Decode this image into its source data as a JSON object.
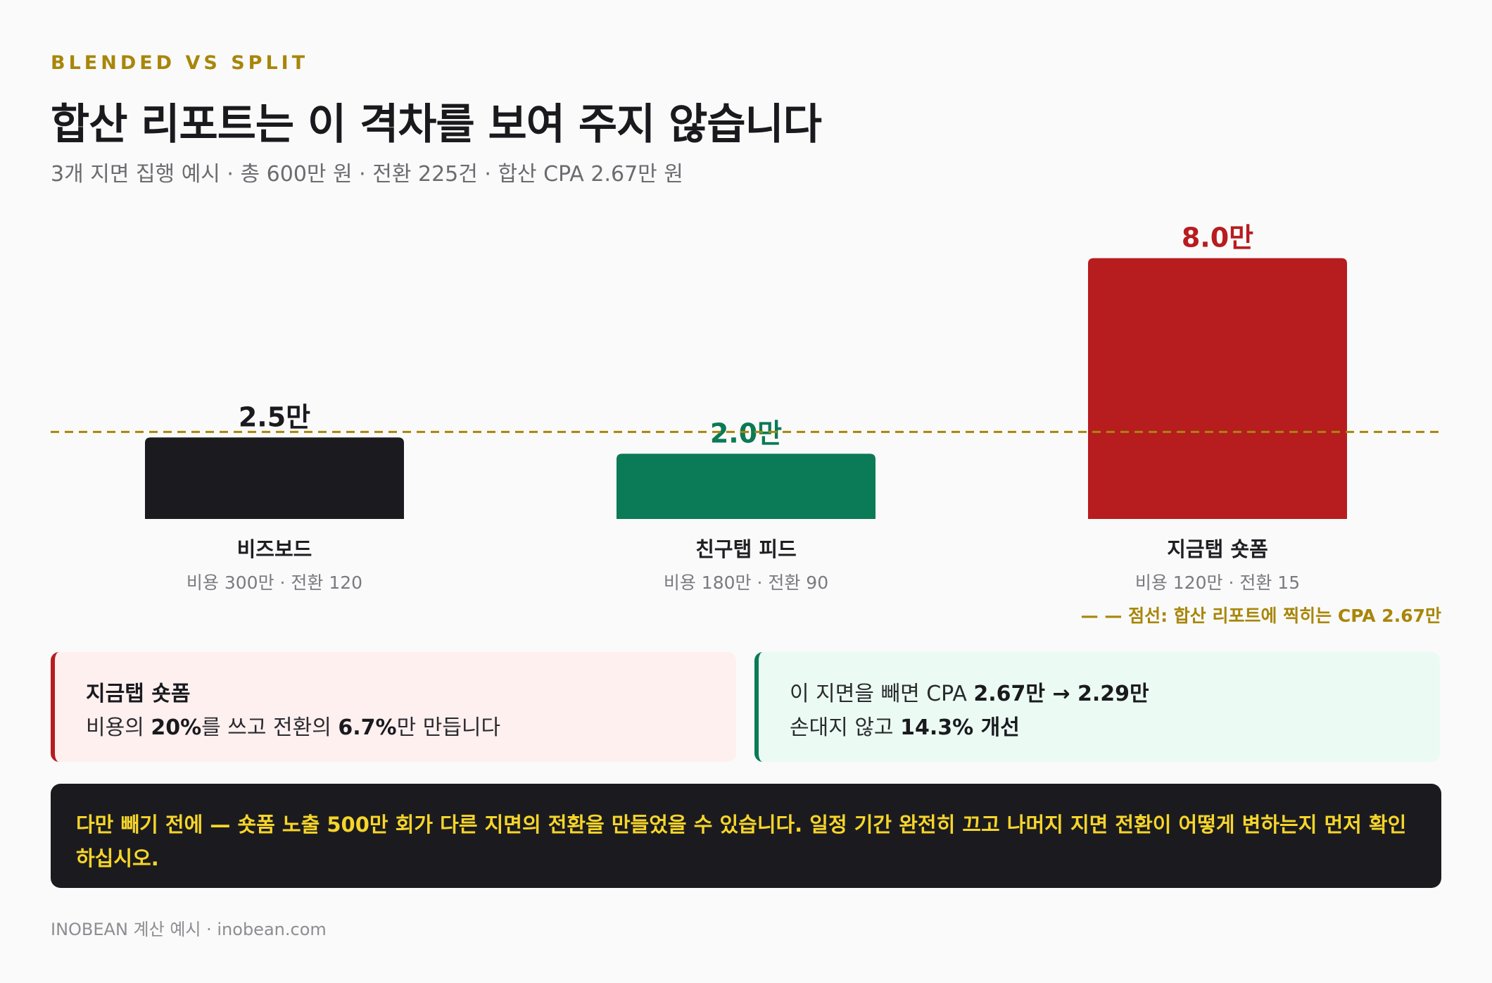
{
  "eyebrow": "BLENDED VS SPLIT",
  "title": "합산 리포트는 이 격차를 보여 주지 않습니다",
  "subtitle": "3개 지면 집행 예시 ·  총 600만 원 ·  전환 225건 ·  합산 CPA 2.67만 원",
  "colors": {
    "accent": "#a8860a",
    "bizboard": "#1b1b1f",
    "friends_feed": "#0b7a56",
    "shopping": "#b71c1f",
    "warning_text": "#f7d52a"
  },
  "chart_data": {
    "type": "bar",
    "categories": [
      "비즈보드",
      "친구탭 피드",
      "지금탭 숏폼"
    ],
    "values": [
      2.5,
      2.0,
      8.0
    ],
    "value_labels": [
      "2.5만",
      "2.0만",
      "8.0만"
    ],
    "sublabels": [
      "비용 300만 ·  전환 120",
      "비용 180만 ·  전환 90",
      "비용 120만 ·  전환 15"
    ],
    "colors": [
      "#1b1b1f",
      "#0b7a56",
      "#b71c1f"
    ],
    "label_colors": [
      "#1b1b1f",
      "#0b7a56",
      "#b71c1f"
    ],
    "reference_line": {
      "value": 2.67,
      "style": "dashed",
      "color": "#a8860a",
      "legend": "— — 점선: 합산 리포트에 찍히는 CPA 2.67만"
    },
    "ylim": [
      0,
      8.0
    ],
    "grid": false,
    "title": "",
    "xlabel": "",
    "ylabel": ""
  },
  "callouts": {
    "left": {
      "heading": "지금탭 숏폼",
      "line2_pre": "비용의 ",
      "line2_b1": "20%",
      "line2_mid": "를 쓰고 전환의 ",
      "line2_b2": "6.7%",
      "line2_post": "만 만듭니다"
    },
    "right": {
      "line1_pre": "이 지면을 빼면 CPA ",
      "line1_b": "2.67만 → 2.29만",
      "line2_pre": "손대지 않고 ",
      "line2_b": "14.3% 개선"
    }
  },
  "warning": "다만 빼기 전에 — 숏폼 노출 500만 회가 다른 지면의 전환을 만들었을 수 있습니다. 일정 기간 완전히 끄고 나머지 지면 전환이 어떻게 변하는지 먼저 확인하십시오.",
  "footer": "INOBEAN 계산 예시 · inobean.com"
}
